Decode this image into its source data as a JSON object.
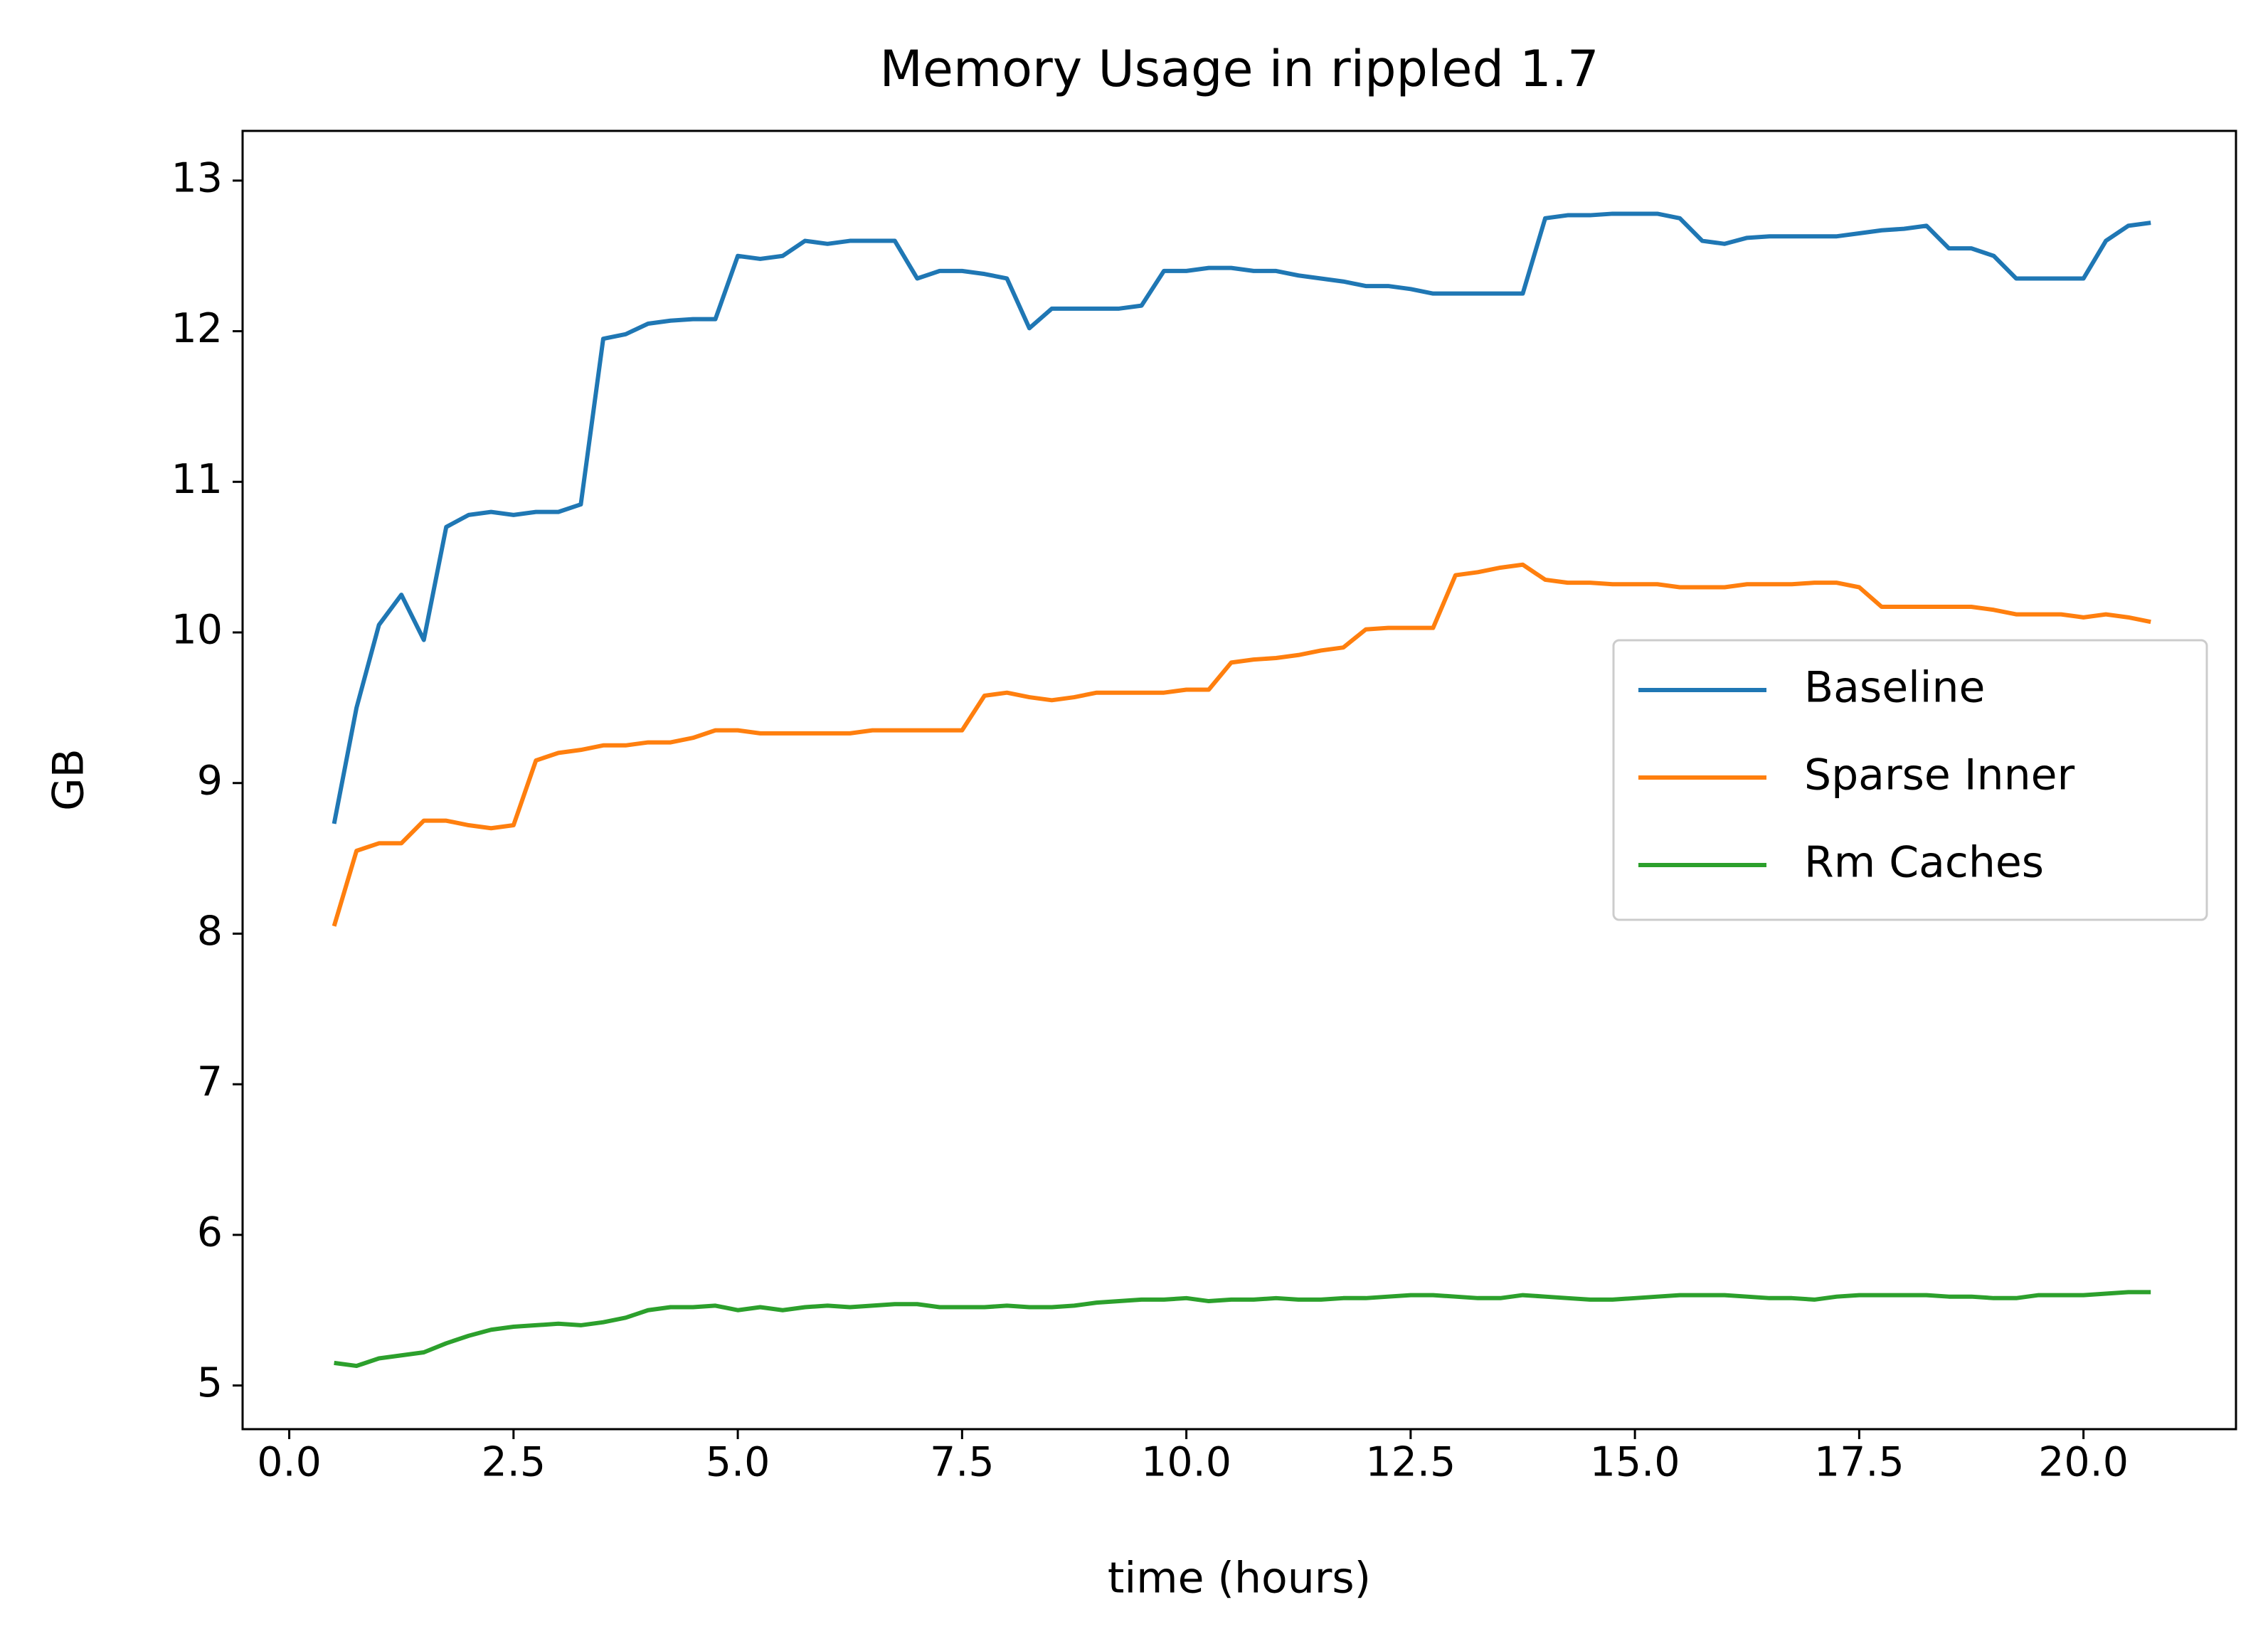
{
  "chart_data": {
    "type": "line",
    "title": "Memory Usage in rippled 1.7",
    "xlabel": "time (hours)",
    "ylabel": "GB",
    "x": [
      0.5,
      0.75,
      1.0,
      1.25,
      1.5,
      1.75,
      2.0,
      2.25,
      2.5,
      2.75,
      3.0,
      3.25,
      3.5,
      3.75,
      4.0,
      4.25,
      4.5,
      4.75,
      5.0,
      5.25,
      5.5,
      5.75,
      6.0,
      6.25,
      6.5,
      6.75,
      7.0,
      7.25,
      7.5,
      7.75,
      8.0,
      8.25,
      8.5,
      8.75,
      9.0,
      9.25,
      9.5,
      9.75,
      10.0,
      10.25,
      10.5,
      10.75,
      11.0,
      11.25,
      11.5,
      11.75,
      12.0,
      12.25,
      12.5,
      12.75,
      13.0,
      13.25,
      13.5,
      13.75,
      14.0,
      14.25,
      14.5,
      14.75,
      15.0,
      15.25,
      15.5,
      15.75,
      16.0,
      16.25,
      16.5,
      16.75,
      17.0,
      17.25,
      17.5,
      17.75,
      18.0,
      18.25,
      18.5,
      18.75,
      19.0,
      19.25,
      19.5,
      19.75,
      20.0,
      20.25,
      20.5,
      20.75
    ],
    "series": [
      {
        "name": "Baseline",
        "color": "#1f77b4",
        "values": [
          8.73,
          9.5,
          10.05,
          10.25,
          9.95,
          10.7,
          10.78,
          10.8,
          10.78,
          10.8,
          10.8,
          10.85,
          11.95,
          11.98,
          12.05,
          12.07,
          12.08,
          12.08,
          12.5,
          12.48,
          12.5,
          12.6,
          12.58,
          12.6,
          12.6,
          12.6,
          12.35,
          12.4,
          12.4,
          12.38,
          12.35,
          12.02,
          12.15,
          12.15,
          12.15,
          12.15,
          12.17,
          12.4,
          12.4,
          12.42,
          12.42,
          12.4,
          12.4,
          12.37,
          12.35,
          12.33,
          12.3,
          12.3,
          12.28,
          12.25,
          12.25,
          12.25,
          12.25,
          12.25,
          12.75,
          12.77,
          12.77,
          12.78,
          12.78,
          12.78,
          12.75,
          12.6,
          12.58,
          12.62,
          12.63,
          12.63,
          12.63,
          12.63,
          12.65,
          12.67,
          12.68,
          12.7,
          12.55,
          12.55,
          12.5,
          12.35,
          12.35,
          12.35,
          12.35,
          12.6,
          12.7,
          12.72
        ]
      },
      {
        "name": "Sparse Inner",
        "color": "#ff7f0e",
        "values": [
          8.05,
          8.55,
          8.6,
          8.6,
          8.75,
          8.75,
          8.72,
          8.7,
          8.72,
          9.15,
          9.2,
          9.22,
          9.25,
          9.25,
          9.27,
          9.27,
          9.3,
          9.35,
          9.35,
          9.33,
          9.33,
          9.33,
          9.33,
          9.33,
          9.35,
          9.35,
          9.35,
          9.35,
          9.35,
          9.58,
          9.6,
          9.57,
          9.55,
          9.57,
          9.6,
          9.6,
          9.6,
          9.6,
          9.62,
          9.62,
          9.8,
          9.82,
          9.83,
          9.85,
          9.88,
          9.9,
          10.02,
          10.03,
          10.03,
          10.03,
          10.38,
          10.4,
          10.43,
          10.45,
          10.35,
          10.33,
          10.33,
          10.32,
          10.32,
          10.32,
          10.3,
          10.3,
          10.3,
          10.32,
          10.32,
          10.32,
          10.33,
          10.33,
          10.3,
          10.17,
          10.17,
          10.17,
          10.17,
          10.17,
          10.15,
          10.12,
          10.12,
          10.12,
          10.1,
          10.12,
          10.1,
          10.07
        ]
      },
      {
        "name": "Rm Caches",
        "color": "#2ca02c",
        "values": [
          5.15,
          5.13,
          5.18,
          5.2,
          5.22,
          5.28,
          5.33,
          5.37,
          5.39,
          5.4,
          5.41,
          5.4,
          5.42,
          5.45,
          5.5,
          5.52,
          5.52,
          5.53,
          5.5,
          5.52,
          5.5,
          5.52,
          5.53,
          5.52,
          5.53,
          5.54,
          5.54,
          5.52,
          5.52,
          5.52,
          5.53,
          5.52,
          5.52,
          5.53,
          5.55,
          5.56,
          5.57,
          5.57,
          5.58,
          5.56,
          5.57,
          5.57,
          5.58,
          5.57,
          5.57,
          5.58,
          5.58,
          5.59,
          5.6,
          5.6,
          5.59,
          5.58,
          5.58,
          5.6,
          5.59,
          5.58,
          5.57,
          5.57,
          5.58,
          5.59,
          5.6,
          5.6,
          5.6,
          5.59,
          5.58,
          5.58,
          5.57,
          5.59,
          5.6,
          5.6,
          5.6,
          5.6,
          5.59,
          5.59,
          5.58,
          5.58,
          5.6,
          5.6,
          5.6,
          5.61,
          5.62,
          5.62
        ]
      }
    ],
    "xlim": [
      -0.52,
      21.7
    ],
    "ylim": [
      4.71,
      13.33
    ],
    "xticks": [
      {
        "value": 0,
        "label": "0.0"
      },
      2.5,
      {
        "value": 5,
        "label": "5.0"
      },
      7.5,
      {
        "value": 10,
        "label": "10.0"
      },
      12.5,
      {
        "value": 15,
        "label": "15.0"
      },
      17.5,
      {
        "value": 20,
        "label": "20.0"
      }
    ],
    "yticks": [
      5,
      6,
      7,
      8,
      9,
      10,
      11,
      12,
      13
    ],
    "grid": false,
    "legend": "center right"
  }
}
